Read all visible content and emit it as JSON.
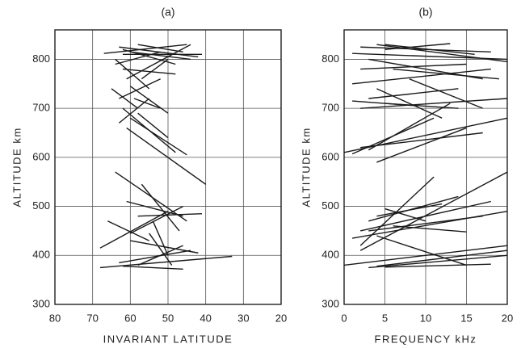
{
  "chart_data": [
    {
      "type": "segments",
      "title": "(a)",
      "x_label": "INVARIANT LATITUDE",
      "y_label": "ALTITUDE km",
      "xlim": [
        80,
        20
      ],
      "xticks": [
        80,
        70,
        60,
        50,
        40,
        30,
        20
      ],
      "ylim": [
        300,
        860
      ],
      "yticks": [
        300,
        400,
        500,
        600,
        700,
        800
      ],
      "grid": true,
      "color": "#1a1a1a",
      "series": [
        {
          "x": [
            67,
            45
          ],
          "values": [
            812,
            830
          ]
        },
        {
          "x": [
            63,
            42
          ],
          "values": [
            825,
            805
          ]
        },
        {
          "x": [
            62,
            48
          ],
          "values": [
            820,
            790
          ]
        },
        {
          "x": [
            60,
            44
          ],
          "values": [
            815,
            800
          ]
        },
        {
          "x": [
            64,
            55
          ],
          "values": [
            800,
            740
          ]
        },
        {
          "x": [
            62,
            48
          ],
          "values": [
            780,
            770
          ]
        },
        {
          "x": [
            61,
            44
          ],
          "values": [
            760,
            830
          ]
        },
        {
          "x": [
            60,
            50
          ],
          "values": [
            745,
            690
          ]
        },
        {
          "x": [
            63,
            52
          ],
          "values": [
            720,
            760
          ]
        },
        {
          "x": [
            65,
            58
          ],
          "values": [
            740,
            700
          ]
        },
        {
          "x": [
            62,
            48
          ],
          "values": [
            700,
            610
          ]
        },
        {
          "x": [
            60,
            45
          ],
          "values": [
            680,
            605
          ]
        },
        {
          "x": [
            58,
            50
          ],
          "values": [
            690,
            640
          ]
        },
        {
          "x": [
            63,
            55
          ],
          "values": [
            670,
            720
          ]
        },
        {
          "x": [
            61,
            40
          ],
          "values": [
            660,
            545
          ]
        },
        {
          "x": [
            57,
            50
          ],
          "values": [
            760,
            800
          ]
        },
        {
          "x": [
            59,
            52
          ],
          "values": [
            720,
            700
          ]
        },
        {
          "x": [
            62,
            41
          ],
          "values": [
            810,
            810
          ]
        },
        {
          "x": [
            58,
            46
          ],
          "values": [
            830,
            815
          ]
        },
        {
          "x": [
            64,
            52
          ],
          "values": [
            790,
            815
          ]
        },
        {
          "x": [
            64,
            45
          ],
          "values": [
            570,
            470
          ]
        },
        {
          "x": [
            66,
            55
          ],
          "values": [
            470,
            430
          ]
        },
        {
          "x": [
            68,
            50
          ],
          "values": [
            415,
            490
          ]
        },
        {
          "x": [
            58,
            41
          ],
          "values": [
            480,
            485
          ]
        },
        {
          "x": [
            61,
            46
          ],
          "values": [
            510,
            480
          ]
        },
        {
          "x": [
            57,
            47
          ],
          "values": [
            545,
            450
          ]
        },
        {
          "x": [
            60,
            46
          ],
          "values": [
            445,
            500
          ]
        },
        {
          "x": [
            68,
            33
          ],
          "values": [
            375,
            398
          ]
        },
        {
          "x": [
            63,
            44
          ],
          "values": [
            385,
            410
          ]
        },
        {
          "x": [
            62,
            46
          ],
          "values": [
            378,
            372
          ]
        },
        {
          "x": [
            60,
            42
          ],
          "values": [
            430,
            405
          ]
        },
        {
          "x": [
            55,
            49
          ],
          "values": [
            445,
            380
          ]
        },
        {
          "x": [
            58,
            46
          ],
          "values": [
            380,
            420
          ]
        },
        {
          "x": [
            54,
            50
          ],
          "values": [
            470,
            400
          ]
        }
      ]
    },
    {
      "type": "segments",
      "title": "(b)",
      "x_label": "FREQUENCY kHz",
      "y_label": "ALTITUDE km",
      "xlim": [
        0,
        20
      ],
      "xticks": [
        0,
        5,
        10,
        15,
        20
      ],
      "ylim": [
        300,
        860
      ],
      "yticks": [
        300,
        400,
        500,
        600,
        700,
        800
      ],
      "grid": true,
      "color": "#1a1a1a",
      "series": [
        {
          "x": [
            1,
            20
          ],
          "values": [
            812,
            800
          ]
        },
        {
          "x": [
            2,
            18
          ],
          "values": [
            825,
            815
          ]
        },
        {
          "x": [
            3,
            17
          ],
          "values": [
            800,
            760
          ]
        },
        {
          "x": [
            4,
            20
          ],
          "values": [
            830,
            795
          ]
        },
        {
          "x": [
            5,
            13
          ],
          "values": [
            820,
            832
          ]
        },
        {
          "x": [
            2,
            15
          ],
          "values": [
            780,
            790
          ]
        },
        {
          "x": [
            1,
            18
          ],
          "values": [
            750,
            780
          ]
        },
        {
          "x": [
            4,
            12
          ],
          "values": [
            740,
            680
          ]
        },
        {
          "x": [
            3,
            14
          ],
          "values": [
            720,
            740
          ]
        },
        {
          "x": [
            2,
            20
          ],
          "values": [
            700,
            720
          ]
        },
        {
          "x": [
            6,
            19
          ],
          "values": [
            780,
            760
          ]
        },
        {
          "x": [
            8,
            17
          ],
          "values": [
            760,
            700
          ]
        },
        {
          "x": [
            5,
            16
          ],
          "values": [
            830,
            810
          ]
        },
        {
          "x": [
            1,
            9
          ],
          "values": [
            715,
            705
          ]
        },
        {
          "x": [
            5,
            14
          ],
          "values": [
            710,
            700
          ]
        },
        {
          "x": [
            0,
            20
          ],
          "values": [
            610,
            680
          ]
        },
        {
          "x": [
            3,
            13
          ],
          "values": [
            615,
            710
          ]
        },
        {
          "x": [
            2,
            17
          ],
          "values": [
            620,
            650
          ]
        },
        {
          "x": [
            4,
            15
          ],
          "values": [
            590,
            660
          ]
        },
        {
          "x": [
            1,
            11
          ],
          "values": [
            607,
            680
          ]
        },
        {
          "x": [
            0,
            20
          ],
          "values": [
            380,
            420
          ]
        },
        {
          "x": [
            3,
            20
          ],
          "values": [
            375,
            400
          ]
        },
        {
          "x": [
            4,
            20
          ],
          "values": [
            378,
            410
          ]
        },
        {
          "x": [
            5,
            18
          ],
          "values": [
            376,
            382
          ]
        },
        {
          "x": [
            2,
            20
          ],
          "values": [
            410,
            570
          ]
        },
        {
          "x": [
            2,
            11
          ],
          "values": [
            420,
            560
          ]
        },
        {
          "x": [
            1,
            20
          ],
          "values": [
            435,
            490
          ]
        },
        {
          "x": [
            3,
            14
          ],
          "values": [
            470,
            520
          ]
        },
        {
          "x": [
            2,
            18
          ],
          "values": [
            450,
            510
          ]
        },
        {
          "x": [
            4,
            12
          ],
          "values": [
            480,
            505
          ]
        },
        {
          "x": [
            3,
            17
          ],
          "values": [
            450,
            480
          ]
        },
        {
          "x": [
            4,
            15
          ],
          "values": [
            440,
            380
          ]
        },
        {
          "x": [
            5,
            10
          ],
          "values": [
            495,
            470
          ]
        },
        {
          "x": [
            6,
            15
          ],
          "values": [
            460,
            448
          ]
        }
      ]
    }
  ]
}
